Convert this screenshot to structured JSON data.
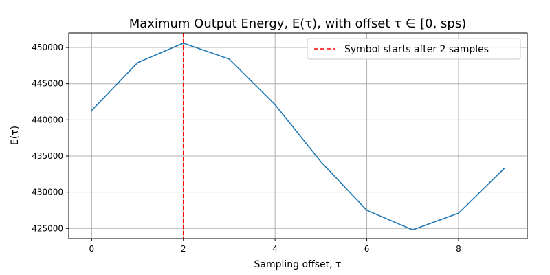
{
  "chart_data": {
    "type": "line",
    "title": "Maximum Output Energy, E(τ), with offset τ ∈ [0, sps)",
    "xlabel": "Sampling offset, τ",
    "ylabel": "E(τ)",
    "xlim": [
      -0.5,
      9.5
    ],
    "ylim": [
      423600,
      452000
    ],
    "xticks": [
      0,
      2,
      4,
      6,
      8
    ],
    "yticks": [
      425000,
      430000,
      435000,
      440000,
      445000,
      450000
    ],
    "grid": true,
    "legend_position": "top-right",
    "series": [
      {
        "color": "#1f77b4",
        "x": [
          0,
          1,
          2,
          3,
          4,
          5,
          6,
          7,
          8,
          9
        ],
        "values": [
          441300,
          447900,
          450600,
          448400,
          442100,
          434200,
          427500,
          424800,
          427100,
          433300
        ]
      }
    ],
    "vlines": [
      {
        "x": 2,
        "name": "Symbol starts after 2 samples",
        "color": "#ff0000",
        "style": "dashed"
      }
    ]
  }
}
